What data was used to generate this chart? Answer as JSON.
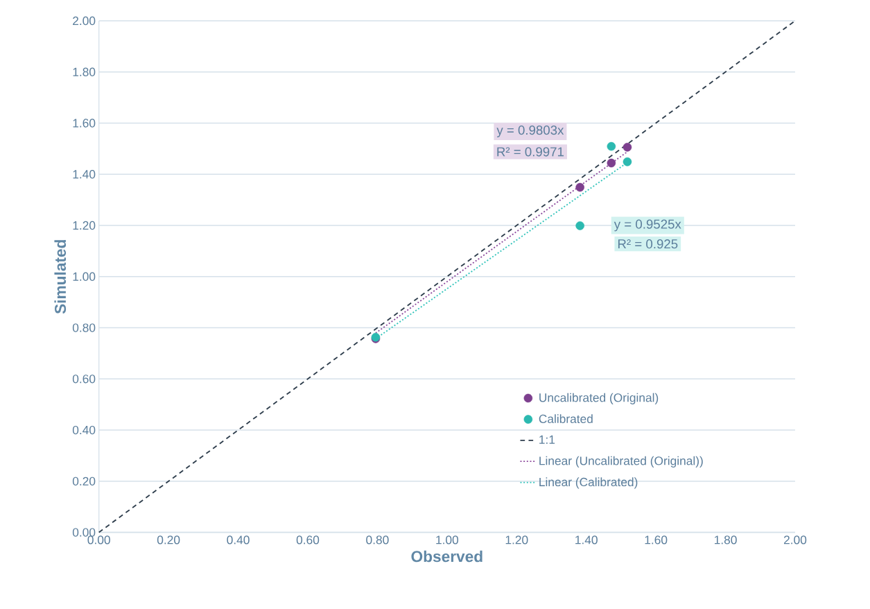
{
  "chart_data": {
    "type": "scatter",
    "xlabel": "Observed",
    "ylabel": "Simulated",
    "xlim": [
      0,
      2
    ],
    "ylim": [
      0,
      2
    ],
    "xticks": [
      {
        "value": 0,
        "label": "0.00"
      },
      {
        "value": 0.2,
        "label": "0.20"
      },
      {
        "value": 0.4,
        "label": "0.40"
      },
      {
        "value": 0.6,
        "label": "0.60"
      },
      {
        "value": 0.8,
        "label": "0.80"
      },
      {
        "value": 1,
        "label": "1.00"
      },
      {
        "value": 1.2,
        "label": "1.20"
      },
      {
        "value": 1.4,
        "label": "1.40"
      },
      {
        "value": 1.6,
        "label": "1.60"
      },
      {
        "value": 1.8,
        "label": "1.80"
      },
      {
        "value": 2,
        "label": "2.00"
      }
    ],
    "yticks": [
      {
        "value": 0,
        "label": "0.00"
      },
      {
        "value": 0.2,
        "label": "0.20"
      },
      {
        "value": 0.4,
        "label": "0.40"
      },
      {
        "value": 0.6,
        "label": "0.60"
      },
      {
        "value": 0.8,
        "label": "0.80"
      },
      {
        "value": 1,
        "label": "1.00"
      },
      {
        "value": 1.2,
        "label": "1.20"
      },
      {
        "value": 1.4,
        "label": "1.40"
      },
      {
        "value": 1.6,
        "label": "1.60"
      },
      {
        "value": 1.8,
        "label": "1.80"
      },
      {
        "value": 2,
        "label": "2.00"
      }
    ],
    "grid": "y",
    "legend": "bottom right",
    "series": [
      {
        "name": "Uncalibrated (Original)",
        "marker": "circle",
        "color": "#7d3f8e",
        "x": [
          0.795,
          1.382,
          1.472,
          1.518
        ],
        "values": [
          0.757,
          1.349,
          1.444,
          1.506
        ]
      },
      {
        "name": "Calibrated",
        "marker": "circle",
        "color": "#2cb9b0",
        "x": [
          0.795,
          1.382,
          1.472,
          1.518
        ],
        "values": [
          0.763,
          1.199,
          1.509,
          1.449
        ]
      },
      {
        "name": "1:1",
        "type": "line",
        "marker": "none",
        "line_style": "dashed",
        "color": "#2e3d4c",
        "x": [
          0,
          2
        ],
        "values": [
          0,
          2
        ]
      },
      {
        "name": "Linear (Uncalibrated (Original))",
        "type": "line",
        "marker": "none",
        "line_style": "dotted",
        "color": "#8e4c9e",
        "x": [
          0.795,
          1.518
        ],
        "values": [
          0.779,
          1.488
        ]
      },
      {
        "name": "Linear (Calibrated)",
        "type": "line",
        "marker": "none",
        "line_style": "dotted",
        "color": "#33c4bb",
        "x": [
          0.795,
          1.518
        ],
        "values": [
          0.757,
          1.446
        ]
      }
    ],
    "annotations": [
      "y = 0.9803x",
      "R² = 0.9971",
      "y = 0.9525x",
      "R² = 0.925"
    ]
  }
}
